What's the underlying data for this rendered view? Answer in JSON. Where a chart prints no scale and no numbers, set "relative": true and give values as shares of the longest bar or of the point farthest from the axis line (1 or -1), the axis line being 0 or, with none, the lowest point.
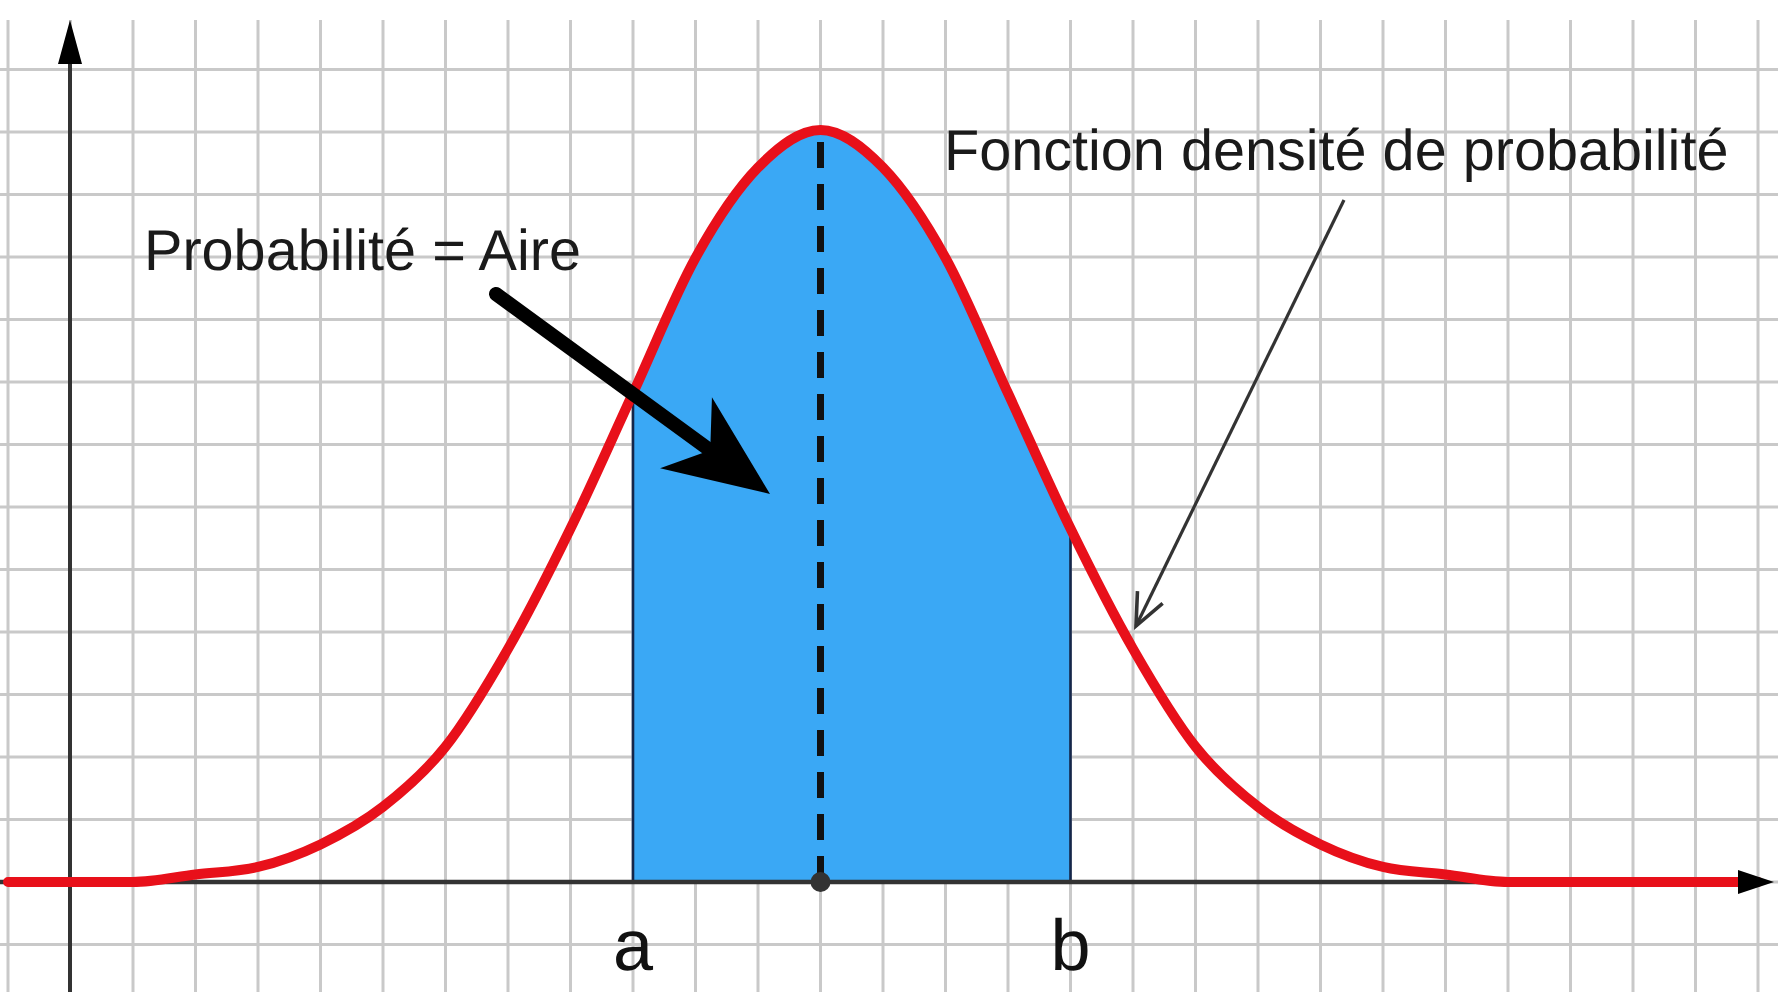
{
  "chart_data": {
    "type": "line",
    "relative": true,
    "categories": [
      null,
      null,
      null,
      null,
      null,
      null,
      null,
      null,
      null,
      null,
      "a",
      null,
      null,
      null,
      null,
      null,
      null,
      "b",
      null,
      null,
      null,
      null,
      null,
      null,
      null,
      null,
      null,
      null,
      null
    ],
    "grid": true,
    "tick_labels": "x",
    "series": [
      {
        "type": "area",
        "color": "#3aa8f5",
        "values": [
          null,
          null,
          null,
          null,
          null,
          null,
          null,
          null,
          null,
          null,
          0.65,
          0.83,
          0.95,
          1,
          0.95,
          0.83,
          0.65,
          0.47,
          null,
          null,
          null,
          null,
          null,
          null,
          null,
          null,
          null,
          null,
          null
        ]
      },
      {
        "color": "#e8101a",
        "values": [
          0,
          0,
          0,
          0.01,
          0.02,
          0.05,
          0.1,
          0.18,
          0.31,
          0.47,
          0.65,
          0.83,
          0.95,
          1,
          0.95,
          0.83,
          0.65,
          0.47,
          0.31,
          0.18,
          0.1,
          0.05,
          0.02,
          0.01,
          0,
          0,
          0,
          0,
          0
        ]
      },
      {
        "type": "scatter",
        "color": "#333333",
        "marker": "circle",
        "values": [
          null,
          null,
          null,
          null,
          null,
          null,
          null,
          null,
          null,
          null,
          null,
          null,
          null,
          0,
          null,
          null,
          null,
          null,
          null,
          null,
          null,
          null,
          null,
          null,
          null,
          null,
          null,
          null,
          null
        ]
      }
    ],
    "annotations": [
      "Probabilité = Aire",
      "Fonction densité de probabilité"
    ]
  }
}
